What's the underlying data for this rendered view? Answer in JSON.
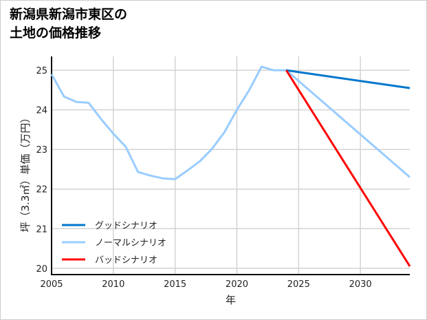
{
  "chart_data": {
    "type": "line",
    "title_lines": [
      "新潟県新潟市東区の",
      "土地の価格推移"
    ],
    "xlabel": "年",
    "ylabel": "坪（3.3㎡）単価（万円）",
    "xlim": [
      2005,
      2034
    ],
    "ylim": [
      19.84,
      25.35
    ],
    "xticks": [
      2005,
      2010,
      2015,
      2020,
      2025,
      2030
    ],
    "yticks": [
      20,
      21,
      22,
      23,
      24,
      25
    ],
    "grid": true,
    "legend_position": "bottom-left",
    "series": [
      {
        "name": "グッドシナリオ",
        "color": "#0077cc",
        "x": [
          2024,
          2034
        ],
        "y": [
          25.0,
          24.55
        ]
      },
      {
        "name": "ノーマルシナリオ",
        "color": "#99ccff",
        "x": [
          2005,
          2006,
          2007,
          2008,
          2009,
          2010,
          2011,
          2012,
          2013,
          2014,
          2015,
          2016,
          2017,
          2018,
          2019,
          2020,
          2021,
          2022,
          2023,
          2024,
          2034
        ],
        "y": [
          24.9,
          24.34,
          24.2,
          24.18,
          23.77,
          23.4,
          23.07,
          22.43,
          22.34,
          22.27,
          22.25,
          22.47,
          22.7,
          23.02,
          23.44,
          24.0,
          24.5,
          25.09,
          25.0,
          25.0,
          22.3
        ]
      },
      {
        "name": "バッドシナリオ",
        "color": "#ff0000",
        "x": [
          2024,
          2034
        ],
        "y": [
          25.0,
          20.05
        ]
      }
    ]
  }
}
